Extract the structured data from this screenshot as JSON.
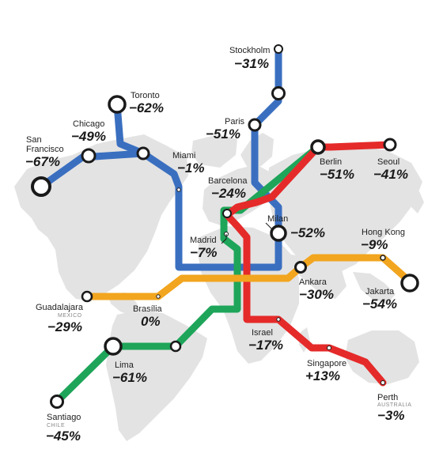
{
  "colors": {
    "blue": "#3a6fc0",
    "green": "#1ea55a",
    "red": "#e52a2a",
    "orange": "#f2a51f",
    "land": "#e3e3e3",
    "station_stroke": "#1a1a1a"
  },
  "lines": [
    {
      "name": "blue-line",
      "color": "blue"
    },
    {
      "name": "green-line",
      "color": "green"
    },
    {
      "name": "red-line",
      "color": "red"
    },
    {
      "name": "orange-line",
      "color": "orange"
    }
  ],
  "cities": {
    "stockholm": {
      "name": "Stockholm",
      "change": "−31%"
    },
    "paris": {
      "name": "Paris",
      "change": "−51%"
    },
    "toronto": {
      "name": "Toronto",
      "change": "−62%"
    },
    "chicago": {
      "name": "Chicago",
      "change": "−49%"
    },
    "san_francisco": {
      "name_line1": "San",
      "name_line2": "Francisco",
      "change": "−67%"
    },
    "miami": {
      "name": "Miami",
      "change": "−1%"
    },
    "barcelona": {
      "name": "Barcelona",
      "change": "−24%"
    },
    "berlin": {
      "name": "Berlin",
      "change": "−51%"
    },
    "seoul": {
      "name": "Seoul",
      "change": "−41%"
    },
    "madrid": {
      "name": "Madrid",
      "change": "−7%"
    },
    "milan": {
      "name": "Milan",
      "change": "−52%"
    },
    "hong_kong": {
      "name": "Hong Kong",
      "change": "−9%"
    },
    "ankara": {
      "name": "Ankara",
      "change": "−30%"
    },
    "jakarta": {
      "name": "Jakarta",
      "change": "−54%"
    },
    "guadalajara": {
      "name": "Guadalajara",
      "country": "MEXICO",
      "change": "−29%"
    },
    "brasilia": {
      "name": "Brasília",
      "change": "0%"
    },
    "israel": {
      "name": "Israel",
      "change": "−17%"
    },
    "lima": {
      "name": "Lima",
      "change": "−61%"
    },
    "singapore": {
      "name": "Singapore",
      "change": "+13%"
    },
    "perth": {
      "name": "Perth",
      "country": "AUSTRALIA",
      "change": "−3%"
    },
    "santiago": {
      "name": "Santiago",
      "country": "CHILE",
      "change": "−45%"
    }
  }
}
